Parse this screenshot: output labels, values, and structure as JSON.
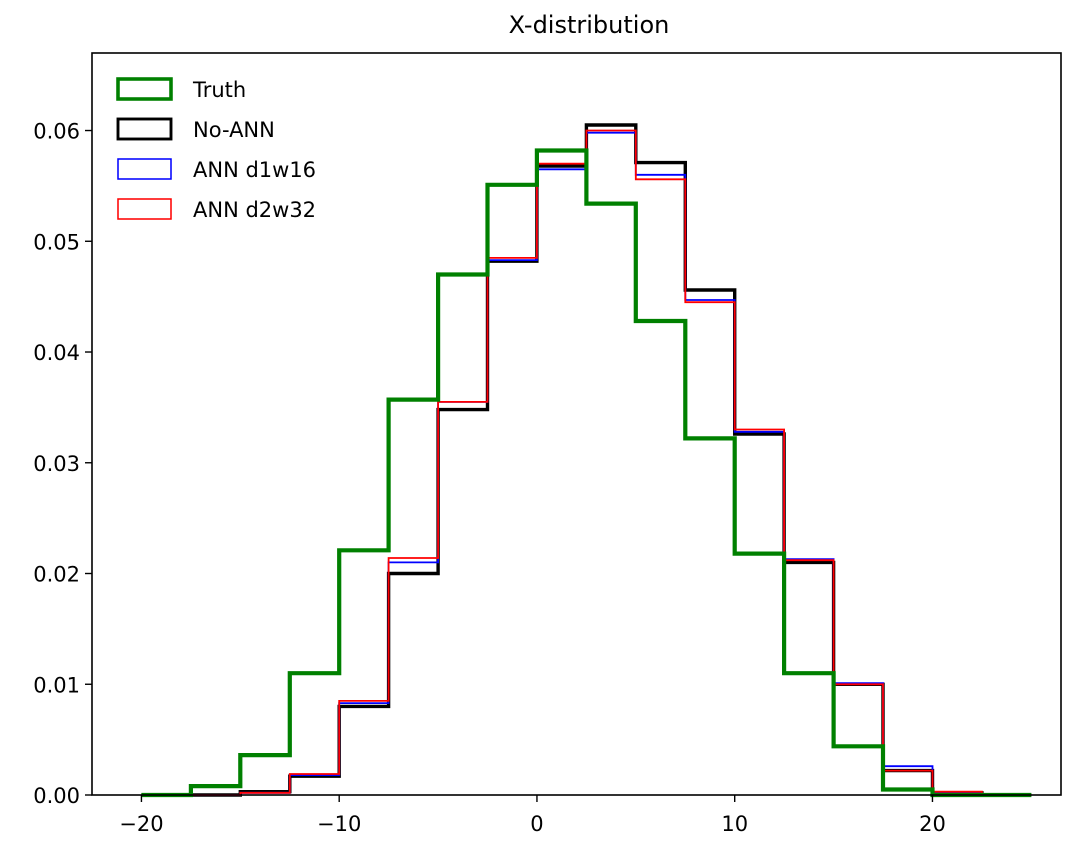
{
  "chart_data": {
    "type": "step",
    "title": "X-distribution",
    "xlabel": "",
    "ylabel": "",
    "xlim": [
      -22.5,
      26.5
    ],
    "ylim": [
      0.0,
      0.067
    ],
    "xticks": [
      -20,
      -10,
      0,
      10,
      20
    ],
    "xtick_labels": [
      "−20",
      "−10",
      "0",
      "10",
      "20"
    ],
    "yticks": [
      0.0,
      0.01,
      0.02,
      0.03,
      0.04,
      0.05,
      0.06
    ],
    "ytick_labels": [
      "0.00",
      "0.01",
      "0.02",
      "0.03",
      "0.04",
      "0.05",
      "0.06"
    ],
    "grid": false,
    "legend_position": "upper-left",
    "bin_edges": [
      -20,
      -17.5,
      -15,
      -12.5,
      -10,
      -7.5,
      -5,
      -2.5,
      0,
      2.5,
      5,
      7.5,
      10,
      12.5,
      15,
      17.5,
      20,
      22.5,
      25
    ],
    "series": [
      {
        "name": "No-ANN",
        "color": "#000000",
        "values": [
          0.0,
          0.0,
          0.0003,
          0.0017,
          0.008,
          0.02,
          0.0348,
          0.0482,
          0.0568,
          0.0605,
          0.0571,
          0.0456,
          0.0326,
          0.021,
          0.01,
          0.0022,
          0.0002,
          0.0
        ]
      },
      {
        "name": "ANN d1w16",
        "color": "#0000ff",
        "values": [
          0.0,
          0.0,
          0.0002,
          0.0018,
          0.0083,
          0.021,
          0.0355,
          0.0483,
          0.0565,
          0.0598,
          0.056,
          0.0447,
          0.0328,
          0.0213,
          0.0101,
          0.0026,
          0.0002,
          0.0
        ]
      },
      {
        "name": "ANN d2w32",
        "color": "#ff0000",
        "values": [
          0.0,
          0.0,
          0.0002,
          0.0019,
          0.0085,
          0.0214,
          0.0355,
          0.0485,
          0.057,
          0.06,
          0.0556,
          0.0445,
          0.033,
          0.0212,
          0.01,
          0.0022,
          0.0003,
          0.0
        ]
      },
      {
        "name": "Truth",
        "color": "#008000",
        "values": [
          0.0,
          0.0008,
          0.0036,
          0.011,
          0.0221,
          0.0357,
          0.047,
          0.0551,
          0.0582,
          0.0534,
          0.0428,
          0.0322,
          0.0218,
          0.011,
          0.0044,
          0.0005,
          0.0,
          0.0
        ]
      }
    ],
    "legend_order": [
      "Truth",
      "No-ANN",
      "ANN d1w16",
      "ANN d2w32"
    ]
  }
}
